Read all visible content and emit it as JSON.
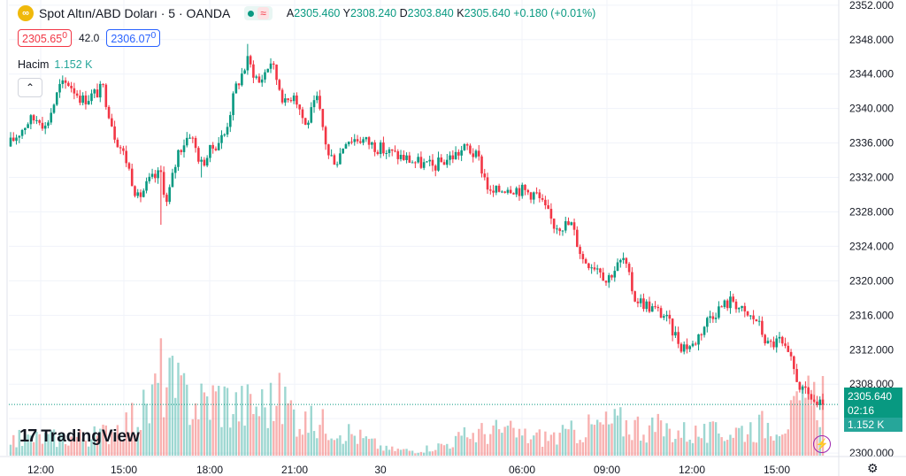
{
  "header": {
    "title": "Spot Altın/ABD Doları · 5 · OANDA",
    "approx_symbol": "≈",
    "ohlc": {
      "open_label": "A",
      "open": "2305.460",
      "high_label": "Y",
      "high": "2308.240",
      "low_label": "D",
      "low": "2303.840",
      "close_label": "K",
      "close": "2305.640",
      "change": "+0.180 (+0.01%)"
    }
  },
  "trade": {
    "sell_price": "2305.65",
    "sell_sup": "0",
    "spread": "42.0",
    "buy_price": "2306.07",
    "buy_sup": "0"
  },
  "volume_legend": {
    "label": "Hacim",
    "value": "1.152 K"
  },
  "collapse_icon": "chevron-up-icon",
  "brand": "TradingView",
  "price_badge": {
    "price": "2305.640",
    "countdown": "02:16"
  },
  "volume_badge": "1.152 K",
  "colors": {
    "up": "#089981",
    "down": "#f23645",
    "volume_up": "#26a69a",
    "volume_down": "#ef5350"
  },
  "chart_data": {
    "type": "candlestick",
    "instrument": "Spot Altın/ABD Doları",
    "interval": "5",
    "source": "OANDA",
    "y_ticks": [
      2300,
      2304,
      2308,
      2312,
      2316,
      2320,
      2324,
      2328,
      2332,
      2336,
      2340,
      2344,
      2348,
      2352
    ],
    "y_tick_labels": [
      "2300.000",
      "2304.000",
      "2308.000",
      "2312.000",
      "2316.000",
      "2320.000",
      "2324.000",
      "2328.000",
      "2332.000",
      "2336.000",
      "2340.000",
      "2344.000",
      "2348.000",
      "2352.000"
    ],
    "ylim": [
      2299.7,
      2352.6
    ],
    "x_tick_labels": [
      "12:00",
      "15:00",
      "18:00",
      "21:00",
      "30",
      "06:00",
      "09:00",
      "12:00",
      "15:00"
    ],
    "last_price": 2305.64,
    "close_path": [
      [
        0,
        2336.0
      ],
      [
        6,
        2338.5
      ],
      [
        10,
        2339.0
      ],
      [
        12,
        2337.8
      ],
      [
        17,
        2342.5
      ],
      [
        20,
        2343.0
      ],
      [
        25,
        2341.0
      ],
      [
        28,
        2341.5
      ],
      [
        32,
        2342.3
      ],
      [
        36,
        2337.0
      ],
      [
        40,
        2334.0
      ],
      [
        44,
        2329.5
      ],
      [
        48,
        2331.5
      ],
      [
        52,
        2332.5
      ],
      [
        54,
        2329.0
      ],
      [
        58,
        2335.0
      ],
      [
        62,
        2337.2
      ],
      [
        66,
        2333.5
      ],
      [
        70,
        2335.5
      ],
      [
        74,
        2337.0
      ],
      [
        78,
        2342.5
      ],
      [
        82,
        2345.5
      ],
      [
        86,
        2343.0
      ],
      [
        90,
        2345.5
      ],
      [
        93,
        2342.5
      ],
      [
        95,
        2340.5
      ],
      [
        98,
        2342.0
      ],
      [
        102,
        2338.0
      ],
      [
        106,
        2341.0
      ],
      [
        110,
        2334.5
      ],
      [
        113,
        2334.0
      ],
      [
        116,
        2336.5
      ],
      [
        121,
        2336.5
      ],
      [
        130,
        2335.0
      ],
      [
        140,
        2333.8
      ],
      [
        146,
        2333.2
      ],
      [
        153,
        2334.5
      ],
      [
        158,
        2335.5
      ],
      [
        162,
        2334.0
      ],
      [
        166,
        2330.0
      ],
      [
        172,
        2331.0
      ],
      [
        182,
        2330.0
      ],
      [
        188,
        2326.5
      ],
      [
        194,
        2326.5
      ],
      [
        198,
        2322.5
      ],
      [
        204,
        2321.5
      ],
      [
        206,
        2320.0
      ],
      [
        208,
        2321.0
      ],
      [
        212,
        2322.5
      ],
      [
        216,
        2318.0
      ],
      [
        220,
        2317.2
      ],
      [
        226,
        2316.0
      ],
      [
        232,
        2312.5
      ],
      [
        236,
        2312.5
      ],
      [
        242,
        2316.0
      ],
      [
        246,
        2317.0
      ],
      [
        250,
        2317.8
      ],
      [
        254,
        2316.0
      ],
      [
        258,
        2315.5
      ],
      [
        262,
        2312.5
      ],
      [
        266,
        2313.0
      ],
      [
        270,
        2310.5
      ],
      [
        274,
        2307.0
      ],
      [
        277,
        2306.5
      ],
      [
        279,
        2305.5
      ],
      [
        281,
        2305.64
      ]
    ],
    "volume_profile": [
      [
        0,
        300
      ],
      [
        30,
        350
      ],
      [
        40,
        600
      ],
      [
        48,
        850
      ],
      [
        52,
        1450
      ],
      [
        58,
        1100
      ],
      [
        66,
        950
      ],
      [
        72,
        1050
      ],
      [
        78,
        900
      ],
      [
        86,
        900
      ],
      [
        94,
        1000
      ],
      [
        102,
        600
      ],
      [
        112,
        550
      ],
      [
        120,
        350
      ],
      [
        130,
        120
      ],
      [
        140,
        90
      ],
      [
        150,
        200
      ],
      [
        160,
        400
      ],
      [
        170,
        450
      ],
      [
        180,
        330
      ],
      [
        190,
        350
      ],
      [
        200,
        500
      ],
      [
        210,
        600
      ],
      [
        220,
        520
      ],
      [
        230,
        450
      ],
      [
        240,
        380
      ],
      [
        250,
        450
      ],
      [
        260,
        550
      ],
      [
        270,
        700
      ],
      [
        275,
        900
      ],
      [
        281,
        1152
      ]
    ]
  }
}
